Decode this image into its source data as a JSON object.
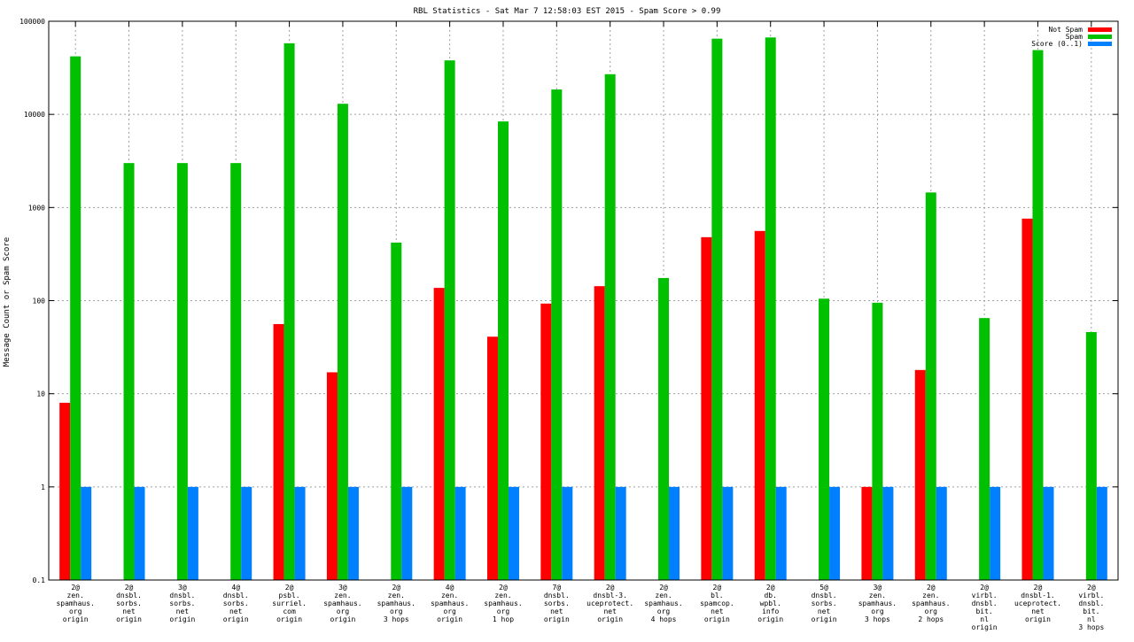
{
  "chart_data": {
    "type": "bar",
    "title": "RBL Statistics - Sat Mar  7 12:58:03 EST 2015 - Spam Score > 0.99",
    "xlabel": "",
    "ylabel": "Message Count or Spam Score",
    "yscale": "log",
    "ylim": [
      0.1,
      100000
    ],
    "yticks": [
      "0.1",
      "1",
      "10",
      "100",
      "1000",
      "10000",
      "100000"
    ],
    "grid": true,
    "legend_position": "top-right",
    "categories": [
      [
        "2@",
        "zen.",
        "spamhaus.",
        "org",
        "origin"
      ],
      [
        "2@",
        "dnsbl.",
        "sorbs.",
        "net",
        "origin"
      ],
      [
        "3@",
        "dnsbl.",
        "sorbs.",
        "net",
        "origin"
      ],
      [
        "4@",
        "dnsbl.",
        "sorbs.",
        "net",
        "origin"
      ],
      [
        "2@",
        "psbl.",
        "surriel.",
        "com",
        "origin"
      ],
      [
        "3@",
        "zen.",
        "spamhaus.",
        "org",
        "origin"
      ],
      [
        "2@",
        "zen.",
        "spamhaus.",
        "org",
        "3 hops"
      ],
      [
        "4@",
        "zen.",
        "spamhaus.",
        "org",
        "origin"
      ],
      [
        "2@",
        "zen.",
        "spamhaus.",
        "org",
        "1 hop"
      ],
      [
        "7@",
        "dnsbl.",
        "sorbs.",
        "net",
        "origin"
      ],
      [
        "2@",
        "dnsbl-3.",
        "uceprotect.",
        "net",
        "origin"
      ],
      [
        "2@",
        "zen.",
        "spamhaus.",
        "org",
        "4 hops"
      ],
      [
        "2@",
        "bl.",
        "spamcop.",
        "net",
        "origin"
      ],
      [
        "2@",
        "db.",
        "wpbl.",
        "info",
        "origin"
      ],
      [
        "5@",
        "dnsbl.",
        "sorbs.",
        "net",
        "origin"
      ],
      [
        "3@",
        "zen.",
        "spamhaus.",
        "org",
        "3 hops"
      ],
      [
        "2@",
        "zen.",
        "spamhaus.",
        "org",
        "2 hops"
      ],
      [
        "2@",
        "virbl.",
        "dnsbl.",
        "bit.",
        "nl",
        "origin"
      ],
      [
        "2@",
        "dnsbl-1.",
        "uceprotect.",
        "net",
        "origin"
      ],
      [
        "2@",
        "virbl.",
        "dnsbl.",
        "bit.",
        "nl",
        "3 hops"
      ]
    ],
    "series": [
      {
        "name": "Not Spam",
        "color": "#ff0000",
        "values": [
          8,
          null,
          null,
          null,
          56,
          17,
          null,
          137,
          41,
          93,
          143,
          null,
          480,
          560,
          null,
          1,
          18,
          null,
          760,
          null
        ]
      },
      {
        "name": "Spam",
        "color": "#00c000",
        "values": [
          42000,
          3000,
          3000,
          3000,
          58000,
          13000,
          420,
          38000,
          8400,
          18500,
          27000,
          175,
          65000,
          67000,
          105,
          95,
          1450,
          65,
          49000,
          46
        ]
      },
      {
        "name": "Score (0..1)",
        "color": "#0080ff",
        "values": [
          1,
          1,
          1,
          1,
          1,
          1,
          1,
          1,
          1,
          1,
          1,
          1,
          1,
          1,
          1,
          1,
          1,
          1,
          1,
          1
        ]
      }
    ]
  }
}
